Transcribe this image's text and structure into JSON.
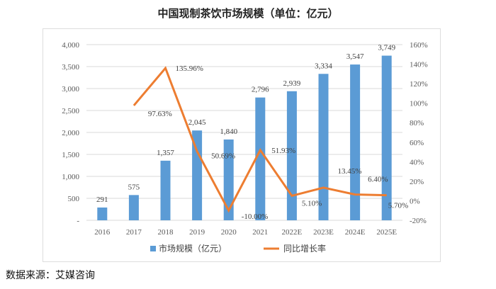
{
  "chart_data": {
    "type": "bar+line",
    "title": "中国现制茶饮市场规模（单位：亿元）",
    "categories": [
      "2016",
      "2017",
      "2018",
      "2019",
      "2020",
      "2021",
      "2022E",
      "2023E",
      "2024E",
      "2025E"
    ],
    "series": [
      {
        "name": "市场规模（亿元）",
        "type": "bar",
        "axis": "left",
        "color": "#5B9BD5",
        "values": [
          291,
          575,
          1357,
          2045,
          1840,
          2796,
          2939,
          3334,
          3547,
          3749
        ],
        "labels": [
          "291",
          "575",
          "1,357",
          "2,045",
          "1,840",
          "2,796",
          "2,939",
          "3,334",
          "3,547",
          "3,749"
        ]
      },
      {
        "name": "同比增长率",
        "type": "line",
        "axis": "right",
        "color": "#ED7D31",
        "values": [
          null,
          97.63,
          135.96,
          50.69,
          -10.0,
          51.93,
          5.1,
          13.45,
          6.4,
          5.7
        ],
        "labels": [
          "",
          "97.63%",
          "135.96%",
          "50.69%",
          "-10.00%",
          "51.93%",
          "5.10%",
          "13.45%",
          "6.40%",
          "5.70%"
        ]
      }
    ],
    "y_left": {
      "range": [
        0,
        4000
      ],
      "ticks": [
        "-",
        "500",
        "1,000",
        "1,500",
        "2,000",
        "2,500",
        "3,000",
        "3,500",
        "4,000"
      ]
    },
    "y_right": {
      "range": [
        -20,
        160
      ],
      "ticks": [
        "-20%",
        "0%",
        "20%",
        "40%",
        "60%",
        "80%",
        "100%",
        "120%",
        "140%",
        "160%"
      ]
    },
    "grid": true,
    "legend": "bottom"
  },
  "source": "数据来源：艾媒咨询"
}
